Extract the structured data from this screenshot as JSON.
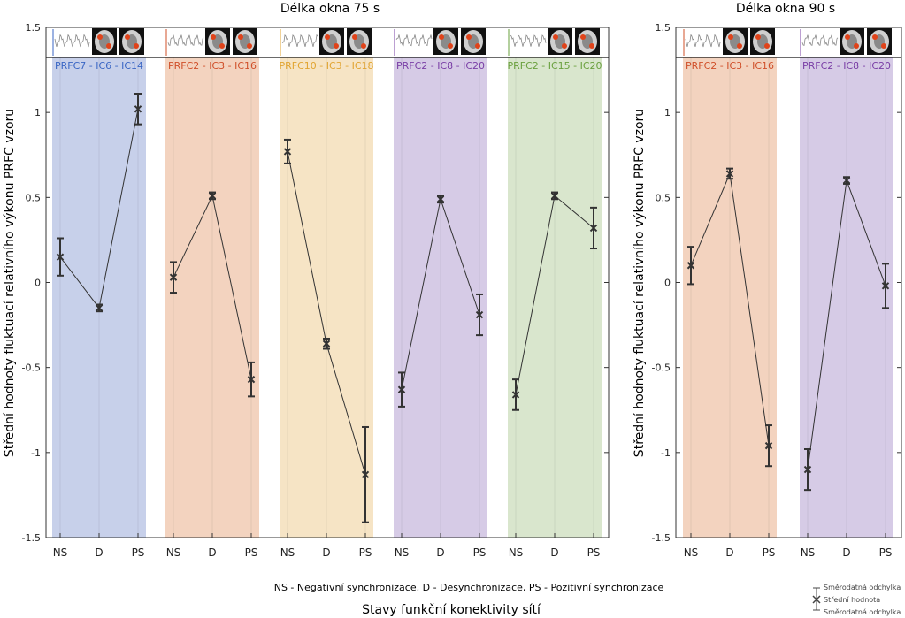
{
  "texts": {
    "title_left": "Délka okna 75 s",
    "title_right": "Délka okna 90 s",
    "ylabel": "Střední hodnoty fluktuací relativního výkonu  PRFC vzoru",
    "legend_text": "NS - Negativní synchronizace, D - Desynchronizace, PS - Pozitivní synchronizace",
    "xlabel": "Stavy funkční konektivity sítí",
    "errorbar_upper": "Směrodatná odchylka",
    "errorbar_mean": "Střední hodnota",
    "errorbar_lower": "Směrodatná odchylka"
  },
  "colors": {
    "blue": "#c7d0ea",
    "blue_text": "#3a66c4",
    "orange": "#f3d3bf",
    "orange_text": "#d0502a",
    "yellow": "#f6e4c5",
    "yellow_text": "#e1a431",
    "purple": "#d6cbe6",
    "purple_text": "#7a3fa6",
    "green": "#d9e6cd",
    "green_text": "#6aa03e",
    "marker": "#333333"
  },
  "chart_data": [
    {
      "type": "line",
      "title": "Délka okna 75 s",
      "ylabel": "Střední hodnoty fluktuací relativního výkonu  PRFC vzoru",
      "ylim": [
        -1.5,
        1.5
      ],
      "yticks": [
        -1.5,
        -1,
        -0.5,
        0,
        0.5,
        1,
        1.5
      ],
      "ytick_labels": [
        "-1.5",
        "-1",
        "-0.5",
        "0",
        "0.5",
        "1",
        "1.5"
      ],
      "categories": [
        "NS",
        "D",
        "PS"
      ],
      "series": [
        {
          "name": "PRFC7 - IC6 - IC14",
          "color": "blue",
          "mean": [
            0.15,
            -0.15,
            1.02
          ],
          "sd": [
            0.11,
            0.02,
            0.09
          ]
        },
        {
          "name": "PRFC2 - IC3 - IC16",
          "color": "orange",
          "mean": [
            0.03,
            0.51,
            -0.57
          ],
          "sd": [
            0.09,
            0.02,
            0.1
          ]
        },
        {
          "name": "PRFC10 - IC3 - IC18",
          "color": "yellow",
          "mean": [
            0.77,
            -0.36,
            -1.13
          ],
          "sd": [
            0.07,
            0.03,
            0.28
          ]
        },
        {
          "name": "PRFC2 - IC8 - IC20",
          "color": "purple",
          "mean": [
            -0.63,
            0.49,
            -0.19
          ],
          "sd": [
            0.1,
            0.02,
            0.12
          ]
        },
        {
          "name": "PRFC2 - IC15 - IC20",
          "color": "green",
          "mean": [
            -0.66,
            0.51,
            0.32
          ],
          "sd": [
            0.09,
            0.02,
            0.12
          ]
        }
      ]
    },
    {
      "type": "line",
      "title": "Délka okna 90 s",
      "ylabel": "Střední hodnoty fluktuací relativního výkonu  PRFC vzoru",
      "ylim": [
        -1.5,
        1.5
      ],
      "yticks": [
        -1.5,
        -1,
        -0.5,
        0,
        0.5,
        1,
        1.5
      ],
      "ytick_labels": [
        "-1.5",
        "-1",
        "-0.5",
        "0",
        "0.5",
        "1",
        "1.5"
      ],
      "categories": [
        "NS",
        "D",
        "PS"
      ],
      "series": [
        {
          "name": "PRFC2 - IC3 - IC16",
          "color": "orange",
          "mean": [
            0.1,
            0.64,
            -0.96
          ],
          "sd": [
            0.11,
            0.03,
            0.12
          ]
        },
        {
          "name": "PRFC2 - IC8 - IC20",
          "color": "purple",
          "mean": [
            -1.1,
            0.6,
            -0.02
          ],
          "sd": [
            0.12,
            0.02,
            0.13
          ]
        }
      ]
    }
  ]
}
